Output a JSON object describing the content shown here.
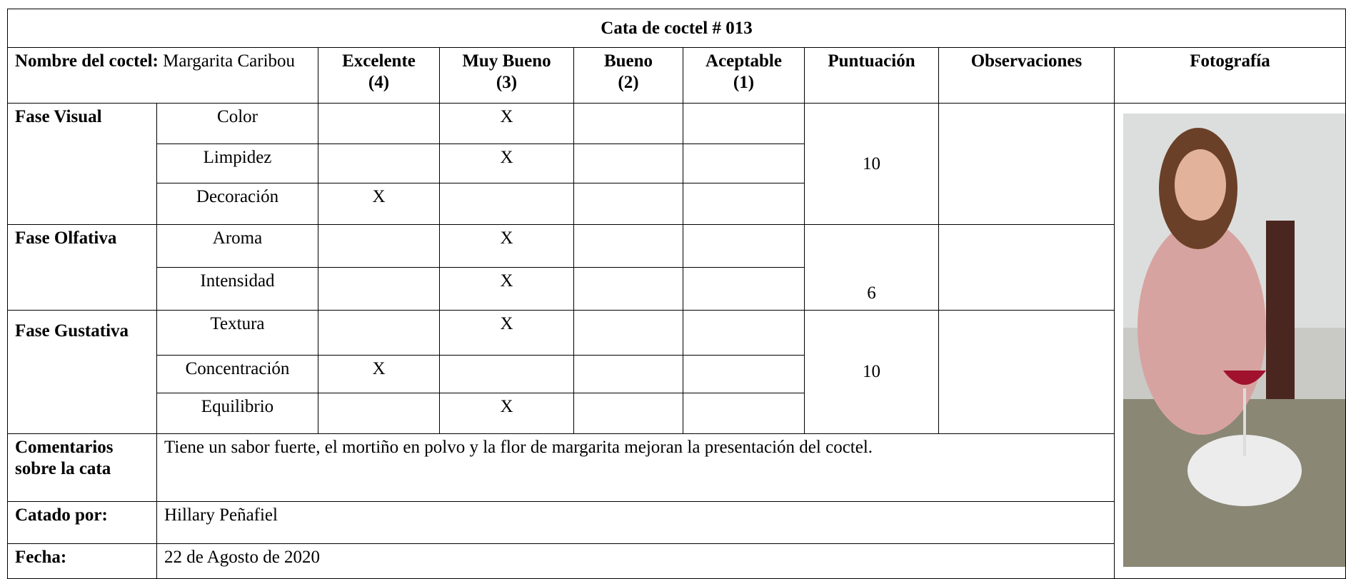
{
  "title": "Cata de coctel # 013",
  "cocktail": {
    "label": "Nombre del coctel:",
    "name": "Margarita Caribou"
  },
  "columns": [
    {
      "name": "Excelente",
      "score": "(4)"
    },
    {
      "name": "Muy Bueno",
      "score": "(3)"
    },
    {
      "name": "Bueno",
      "score": "(2)"
    },
    {
      "name": "Aceptable",
      "score": "(1)"
    }
  ],
  "score_header": "Puntuación",
  "notes_header": "Observaciones",
  "photo_header": "Fotografía",
  "phases": [
    {
      "name": "Fase Visual",
      "score": "10",
      "criteria": [
        {
          "name": "Color",
          "mark": "X",
          "column": 1
        },
        {
          "name": "Limpidez",
          "mark": "X",
          "column": 1
        },
        {
          "name": "Decoración",
          "mark": "X",
          "column": 0
        }
      ]
    },
    {
      "name": "Fase Olfativa",
      "score": "6",
      "criteria": [
        {
          "name": "Aroma",
          "mark": "X",
          "column": 1
        },
        {
          "name": "Intensidad",
          "mark": "X",
          "column": 1
        }
      ]
    },
    {
      "name": "Fase Gustativa",
      "score": "10",
      "criteria": [
        {
          "name": "Textura",
          "mark": "X",
          "column": 1
        },
        {
          "name": "Concentración",
          "mark": "X",
          "column": 0
        },
        {
          "name": "Equilibrio",
          "mark": "X",
          "column": 1
        }
      ]
    }
  ],
  "comments": {
    "label": "Comentarios sobre la cata",
    "text": "Tiene un sabor fuerte, el mortiño en polvo y la flor de margarita mejoran la presentación del coctel."
  },
  "tasted_by": {
    "label": "Catado por:",
    "text": "Hillary Peñafiel"
  },
  "date": {
    "label": "Fecha:",
    "text": "22 de Agosto de 2020"
  }
}
